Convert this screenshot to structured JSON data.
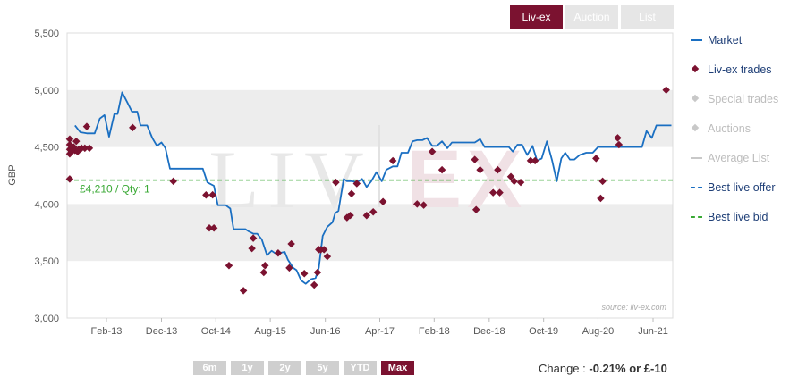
{
  "tabs": [
    {
      "label": "Liv-ex",
      "active": true
    },
    {
      "label": "Auction",
      "active": false
    },
    {
      "label": "List",
      "active": false
    }
  ],
  "range_buttons": [
    {
      "label": "6m",
      "active": false
    },
    {
      "label": "1y",
      "active": false
    },
    {
      "label": "2y",
      "active": false
    },
    {
      "label": "5y",
      "active": false
    },
    {
      "label": "YTD",
      "active": false
    },
    {
      "label": "Max",
      "active": true
    }
  ],
  "change": {
    "label": "Change :",
    "value": "-0.21% or £-10"
  },
  "legend": [
    {
      "label": "Market",
      "kind": "line",
      "color": "#1a6fc2",
      "dim": false
    },
    {
      "label": "Liv-ex trades",
      "kind": "diamond",
      "color": "#7b1230",
      "dim": false
    },
    {
      "label": "Special trades",
      "kind": "diamond",
      "color": "#c8c8c8",
      "dim": true
    },
    {
      "label": "Auctions",
      "kind": "diamond",
      "color": "#c8c8c8",
      "dim": true
    },
    {
      "label": "Average List",
      "kind": "line",
      "color": "#c8c8c8",
      "dim": true
    },
    {
      "label": "Best live offer",
      "kind": "dash",
      "color": "#1a6fc2",
      "dim": false
    },
    {
      "label": "Best live bid",
      "kind": "dash",
      "color": "#3aa935",
      "dim": false
    }
  ],
  "colors": {
    "market": "#1a6fc2",
    "trades": "#7b1230",
    "bid": "#3aa935",
    "band": "#ededed"
  },
  "watermark": {
    "left": "LIV",
    "right": "EX"
  },
  "source_note": "source: liv-ex.com",
  "chart_data": {
    "type": "line",
    "ylabel": "GBP",
    "ylim": [
      3000,
      5500
    ],
    "yticks": [
      "3,000",
      "3,500",
      "4,000",
      "4,500",
      "5,000",
      "5,500"
    ],
    "xticks": [
      {
        "label": "Feb-13",
        "t": 2013.08
      },
      {
        "label": "Dec-13",
        "t": 2013.92
      },
      {
        "label": "Oct-14",
        "t": 2014.75
      },
      {
        "label": "Aug-15",
        "t": 2015.58
      },
      {
        "label": "Jun-16",
        "t": 2016.42
      },
      {
        "label": "Apr-17",
        "t": 2017.25
      },
      {
        "label": "Feb-18",
        "t": 2018.08
      },
      {
        "label": "Dec-18",
        "t": 2018.92
      },
      {
        "label": "Oct-19",
        "t": 2019.75
      },
      {
        "label": "Aug-20",
        "t": 2020.58
      },
      {
        "label": "Jun-21",
        "t": 2021.42
      }
    ],
    "xlim": [
      2012.48,
      2021.72
    ],
    "bid": {
      "value": 4210,
      "label": "£4,210 / Qty: 1"
    },
    "series": [
      {
        "name": "Market",
        "points": [
          [
            2012.6,
            4690
          ],
          [
            2012.68,
            4630
          ],
          [
            2012.78,
            4620
          ],
          [
            2012.9,
            4620
          ],
          [
            2012.98,
            4750
          ],
          [
            2013.05,
            4780
          ],
          [
            2013.12,
            4590
          ],
          [
            2013.2,
            4790
          ],
          [
            2013.25,
            4790
          ],
          [
            2013.32,
            4980
          ],
          [
            2013.4,
            4890
          ],
          [
            2013.47,
            4810
          ],
          [
            2013.55,
            4810
          ],
          [
            2013.6,
            4690
          ],
          [
            2013.7,
            4690
          ],
          [
            2013.78,
            4580
          ],
          [
            2013.85,
            4510
          ],
          [
            2013.92,
            4540
          ],
          [
            2013.98,
            4490
          ],
          [
            2014.05,
            4310
          ],
          [
            2014.55,
            4310
          ],
          [
            2014.62,
            4190
          ],
          [
            2014.72,
            4160
          ],
          [
            2014.78,
            3990
          ],
          [
            2014.9,
            3990
          ],
          [
            2014.97,
            3960
          ],
          [
            2015.02,
            3780
          ],
          [
            2015.2,
            3780
          ],
          [
            2015.25,
            3760
          ],
          [
            2015.32,
            3740
          ],
          [
            2015.38,
            3740
          ],
          [
            2015.45,
            3690
          ],
          [
            2015.53,
            3550
          ],
          [
            2015.6,
            3590
          ],
          [
            2015.65,
            3570
          ],
          [
            2015.72,
            3570
          ],
          [
            2015.8,
            3580
          ],
          [
            2015.85,
            3510
          ],
          [
            2015.93,
            3440
          ],
          [
            2015.98,
            3420
          ],
          [
            2016.05,
            3330
          ],
          [
            2016.12,
            3300
          ],
          [
            2016.2,
            3340
          ],
          [
            2016.27,
            3350
          ],
          [
            2016.32,
            3440
          ],
          [
            2016.38,
            3720
          ],
          [
            2016.45,
            3800
          ],
          [
            2016.53,
            3840
          ],
          [
            2016.57,
            3920
          ],
          [
            2016.62,
            3940
          ],
          [
            2016.7,
            4220
          ],
          [
            2016.75,
            4200
          ],
          [
            2016.83,
            4200
          ],
          [
            2016.9,
            4190
          ],
          [
            2016.98,
            4220
          ],
          [
            2017.05,
            4150
          ],
          [
            2017.12,
            4200
          ],
          [
            2017.2,
            4280
          ],
          [
            2017.28,
            4200
          ],
          [
            2017.35,
            4300
          ],
          [
            2017.45,
            4330
          ],
          [
            2017.52,
            4330
          ],
          [
            2017.58,
            4450
          ],
          [
            2017.68,
            4450
          ],
          [
            2017.75,
            4550
          ],
          [
            2017.82,
            4560
          ],
          [
            2017.9,
            4560
          ],
          [
            2017.97,
            4580
          ],
          [
            2018.05,
            4510
          ],
          [
            2018.12,
            4510
          ],
          [
            2018.2,
            4550
          ],
          [
            2018.28,
            4490
          ],
          [
            2018.35,
            4540
          ],
          [
            2018.45,
            4540
          ],
          [
            2018.7,
            4540
          ],
          [
            2018.78,
            4570
          ],
          [
            2018.85,
            4500
          ],
          [
            2018.95,
            4500
          ],
          [
            2019.22,
            4500
          ],
          [
            2019.28,
            4460
          ],
          [
            2019.35,
            4520
          ],
          [
            2019.42,
            4520
          ],
          [
            2019.5,
            4430
          ],
          [
            2019.58,
            4510
          ],
          [
            2019.65,
            4380
          ],
          [
            2019.72,
            4400
          ],
          [
            2019.8,
            4550
          ],
          [
            2019.88,
            4380
          ],
          [
            2019.95,
            4200
          ],
          [
            2020.02,
            4400
          ],
          [
            2020.08,
            4450
          ],
          [
            2020.15,
            4390
          ],
          [
            2020.22,
            4390
          ],
          [
            2020.3,
            4430
          ],
          [
            2020.4,
            4450
          ],
          [
            2020.5,
            4450
          ],
          [
            2020.58,
            4500
          ],
          [
            2021.25,
            4500
          ],
          [
            2021.32,
            4640
          ],
          [
            2021.4,
            4580
          ],
          [
            2021.47,
            4690
          ],
          [
            2021.7,
            4690
          ]
        ]
      },
      {
        "name": "Liv-ex trades",
        "points": [
          [
            2012.52,
            4570
          ],
          [
            2012.52,
            4520
          ],
          [
            2012.52,
            4480
          ],
          [
            2012.52,
            4440
          ],
          [
            2012.52,
            4220
          ],
          [
            2012.54,
            4510
          ],
          [
            2012.55,
            4460
          ],
          [
            2012.58,
            4500
          ],
          [
            2012.6,
            4470
          ],
          [
            2012.62,
            4550
          ],
          [
            2012.64,
            4460
          ],
          [
            2012.66,
            4480
          ],
          [
            2012.7,
            4490
          ],
          [
            2012.75,
            4490
          ],
          [
            2012.78,
            4680
          ],
          [
            2012.82,
            4490
          ],
          [
            2013.48,
            4670
          ],
          [
            2014.1,
            4200
          ],
          [
            2014.6,
            4080
          ],
          [
            2014.65,
            3790
          ],
          [
            2014.7,
            4080
          ],
          [
            2014.72,
            3790
          ],
          [
            2014.95,
            3460
          ],
          [
            2015.17,
            3240
          ],
          [
            2015.3,
            3610
          ],
          [
            2015.32,
            3700
          ],
          [
            2015.48,
            3400
          ],
          [
            2015.5,
            3460
          ],
          [
            2015.7,
            3570
          ],
          [
            2015.87,
            3440
          ],
          [
            2015.9,
            3650
          ],
          [
            2016.1,
            3390
          ],
          [
            2016.25,
            3290
          ],
          [
            2016.3,
            3400
          ],
          [
            2016.32,
            3600
          ],
          [
            2016.35,
            3600
          ],
          [
            2016.4,
            3600
          ],
          [
            2016.45,
            3540
          ],
          [
            2016.58,
            4190
          ],
          [
            2016.75,
            3880
          ],
          [
            2016.8,
            3900
          ],
          [
            2016.82,
            4090
          ],
          [
            2016.9,
            4180
          ],
          [
            2017.05,
            3900
          ],
          [
            2017.15,
            3930
          ],
          [
            2017.3,
            4020
          ],
          [
            2017.45,
            4380
          ],
          [
            2017.82,
            4000
          ],
          [
            2017.92,
            3990
          ],
          [
            2018.05,
            4460
          ],
          [
            2018.2,
            4300
          ],
          [
            2018.7,
            4390
          ],
          [
            2018.72,
            3950
          ],
          [
            2018.78,
            4300
          ],
          [
            2018.98,
            4100
          ],
          [
            2019.05,
            4300
          ],
          [
            2019.08,
            4100
          ],
          [
            2019.25,
            4240
          ],
          [
            2019.3,
            4200
          ],
          [
            2019.4,
            4190
          ],
          [
            2019.55,
            4380
          ],
          [
            2019.62,
            4380
          ],
          [
            2020.55,
            4400
          ],
          [
            2020.62,
            4050
          ],
          [
            2020.65,
            4200
          ],
          [
            2020.88,
            4580
          ],
          [
            2020.9,
            4520
          ],
          [
            2021.62,
            5000
          ]
        ]
      }
    ]
  }
}
